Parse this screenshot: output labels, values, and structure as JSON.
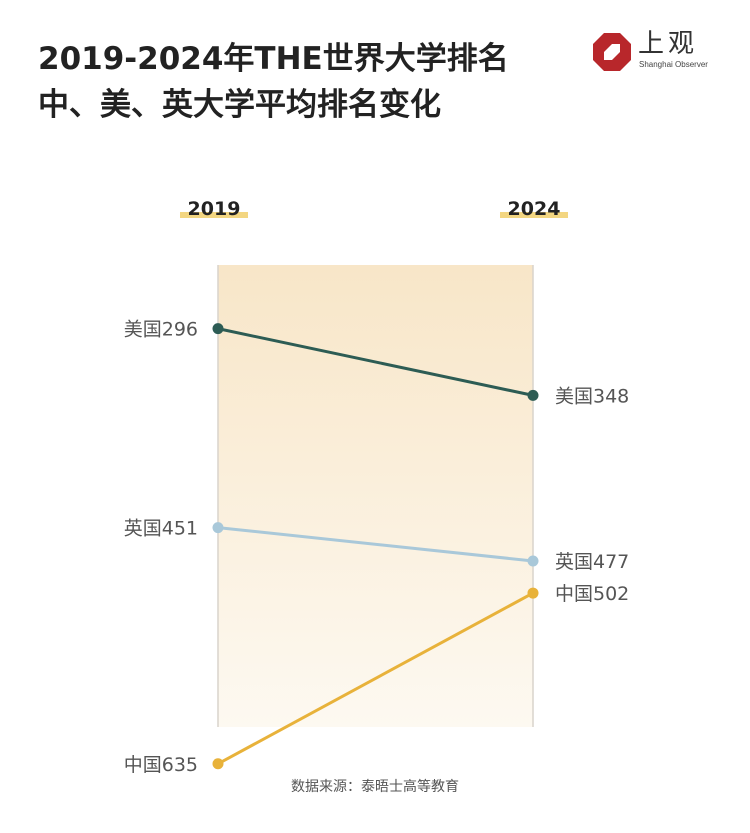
{
  "title_lines": [
    "2019-2024年THE世界大学排名",
    "中、美、英大学平均排名变化"
  ],
  "logo": {
    "text_cn": "上观",
    "text_en": "Shanghai Observer",
    "color": "#b8272b"
  },
  "colors": {
    "background_band_top": "#f8e6c8",
    "background_band_bottom": "#fdf9f1",
    "axis_line": "#d9d4cc",
    "year_underline": "#f1cf6b"
  },
  "chart_data": {
    "type": "line",
    "x": [
      "2019",
      "2024"
    ],
    "series": [
      {
        "name": "美国",
        "values": [
          296,
          348
        ],
        "color": "#2d5c54",
        "labels": [
          "美国296",
          "美国348"
        ]
      },
      {
        "name": "英国",
        "values": [
          451,
          477
        ],
        "color": "#a9c8d9",
        "labels": [
          "英国451",
          "英国477"
        ]
      },
      {
        "name": "中国",
        "values": [
          635,
          502
        ],
        "color": "#e8b23a",
        "labels": [
          "中国635",
          "中国502"
        ]
      }
    ],
    "y_inverted": true,
    "ylim": [
      188,
      671
    ],
    "grid": false,
    "legend": "none"
  },
  "source": "数据来源：泰晤士高等教育"
}
